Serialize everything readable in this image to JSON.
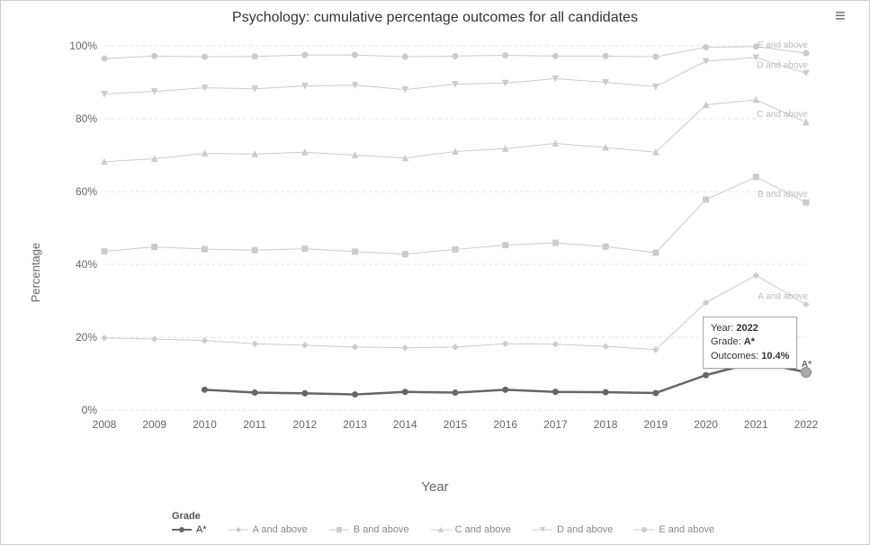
{
  "chart": {
    "title": "Psychology: cumulative percentage outcomes for all candidates",
    "xlabel": "Year",
    "ylabel": "Percentage",
    "title_fontsize": 16,
    "label_fontsize": 13,
    "tick_fontsize": 12,
    "background_color": "#ffffff",
    "grid_color": "#e5e5e5",
    "grid_style": "dashed",
    "border_color": "#cccccc",
    "years": [
      2008,
      2009,
      2010,
      2011,
      2012,
      2013,
      2014,
      2015,
      2016,
      2017,
      2018,
      2019,
      2020,
      2021,
      2022
    ],
    "xlim": [
      2008,
      2022
    ],
    "ylim": [
      0,
      100
    ],
    "ytick_step": 20,
    "ytick_suffix": "%",
    "line_width_normal": 1,
    "line_width_highlight": 2.5,
    "marker_size": 3,
    "faded_color": "#cccccc",
    "highlight_color": "#666666",
    "series": [
      {
        "name": "A*",
        "label": "A*",
        "marker": "circle",
        "highlighted": true,
        "values": [
          null,
          null,
          5.6,
          4.8,
          4.6,
          4.3,
          5.0,
          4.8,
          5.6,
          5.0,
          4.9,
          4.7,
          9.6,
          13.2,
          10.4
        ]
      },
      {
        "name": "A and above",
        "label": "A and above",
        "marker": "diamond",
        "highlighted": false,
        "values": [
          19.8,
          19.5,
          19.1,
          18.2,
          17.8,
          17.3,
          17.1,
          17.3,
          18.2,
          18.1,
          17.5,
          16.6,
          29.5,
          37.0,
          29.0
        ]
      },
      {
        "name": "B and above",
        "label": "B and above",
        "marker": "square",
        "highlighted": false,
        "values": [
          43.6,
          44.8,
          44.2,
          43.9,
          44.3,
          43.5,
          42.8,
          44.1,
          45.3,
          45.9,
          44.9,
          43.2,
          57.8,
          64.0,
          57.0
        ]
      },
      {
        "name": "C and above",
        "label": "C and above",
        "marker": "triangle",
        "highlighted": false,
        "values": [
          68.2,
          69.0,
          70.5,
          70.3,
          70.8,
          70.0,
          69.2,
          71.0,
          71.8,
          73.2,
          72.1,
          70.8,
          83.8,
          85.2,
          79.0
        ]
      },
      {
        "name": "D and above",
        "label": "D and above",
        "marker": "triangle-down",
        "highlighted": false,
        "values": [
          86.8,
          87.5,
          88.5,
          88.2,
          89.0,
          89.2,
          88.0,
          89.5,
          89.8,
          91.0,
          90.0,
          88.8,
          95.8,
          96.8,
          92.5
        ]
      },
      {
        "name": "E and above",
        "label": "E and above",
        "marker": "circle",
        "highlighted": false,
        "values": [
          96.5,
          97.2,
          97.0,
          97.1,
          97.5,
          97.5,
          97.0,
          97.2,
          97.4,
          97.2,
          97.2,
          97.0,
          99.6,
          99.8,
          98.0
        ]
      }
    ],
    "legend": {
      "title": "Grade",
      "position": "bottom",
      "items": [
        "A*",
        "A and above",
        "B and above",
        "C and above",
        "D and above",
        "E and above"
      ]
    },
    "tooltip": {
      "year_label": "Year:",
      "year_value": "2022",
      "grade_label": "Grade:",
      "grade_value": "A*",
      "outcomes_label": "Outcomes:",
      "outcomes_value": "10.4%",
      "border_color": "#aaaaaa",
      "background_color": "#ffffff"
    },
    "highlight_point": {
      "year": 2022,
      "value": 10.4
    }
  }
}
